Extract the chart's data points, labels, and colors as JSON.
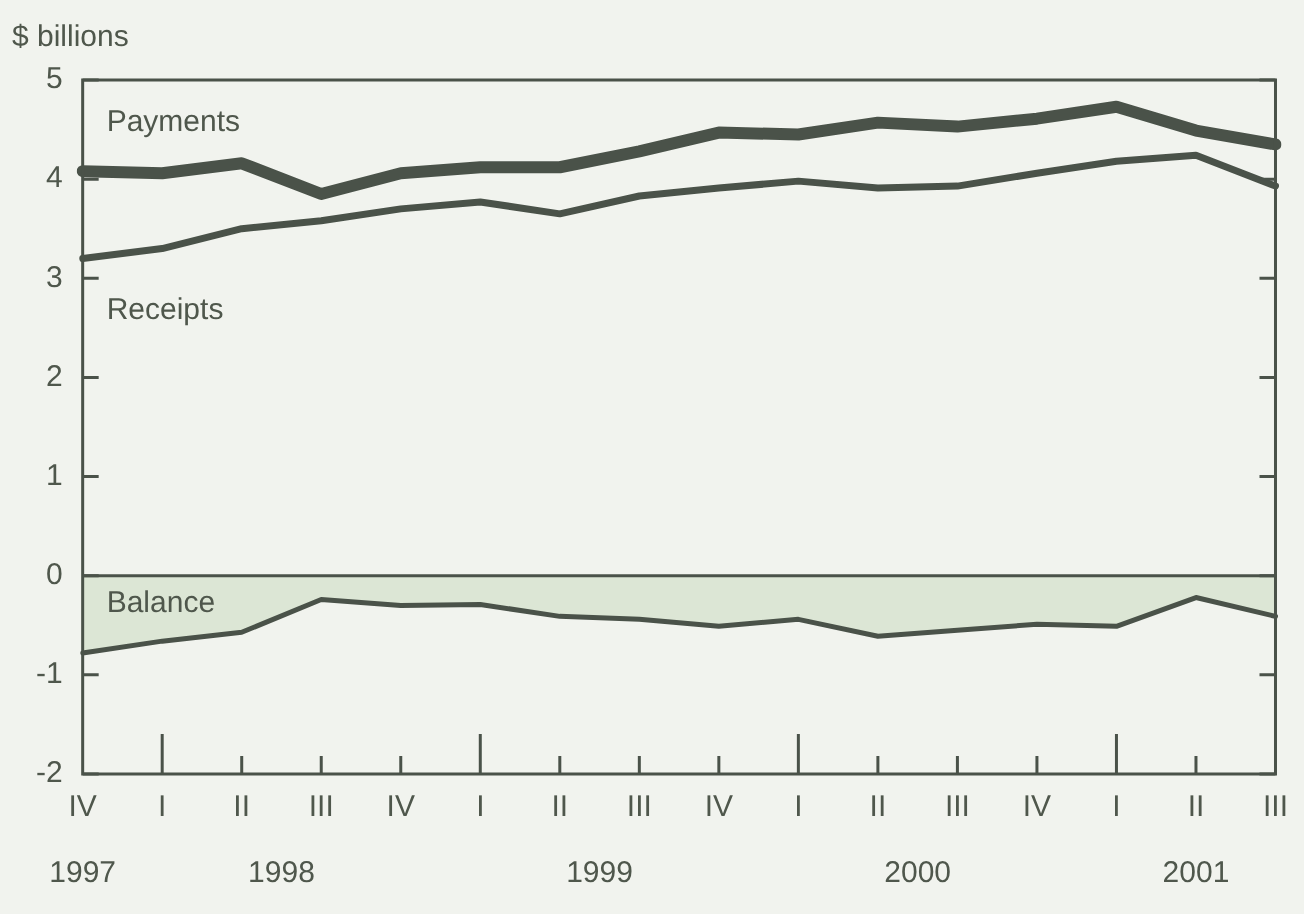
{
  "chart_data": {
    "type": "line",
    "ylabel": "$ billions",
    "categories": [
      "IV",
      "I",
      "II",
      "III",
      "IV",
      "I",
      "II",
      "III",
      "IV",
      "I",
      "II",
      "III",
      "IV",
      "I",
      "II",
      "III"
    ],
    "annotations": [
      "1997",
      "1998",
      "1999",
      "2000",
      "2001"
    ],
    "ylim": [
      -2,
      5
    ],
    "yticks": [
      -2,
      -1,
      0,
      1,
      2,
      3,
      4,
      5
    ],
    "grid": false,
    "ref_lines": [
      {
        "axis": "y",
        "value": 0
      }
    ],
    "legend": false,
    "marker": "none",
    "line_style": "solid",
    "series": [
      {
        "name": "Payments",
        "color": "#4a5249",
        "values": [
          4.08,
          4.06,
          4.16,
          3.85,
          4.06,
          4.12,
          4.12,
          4.28,
          4.47,
          4.45,
          4.57,
          4.53,
          4.61,
          4.73,
          4.49,
          4.35
        ]
      },
      {
        "name": "Receipts",
        "color": "#4a5249",
        "values": [
          3.2,
          3.3,
          3.5,
          3.58,
          3.7,
          3.77,
          3.65,
          3.83,
          3.91,
          3.98,
          3.91,
          3.93,
          4.06,
          4.18,
          4.24,
          3.93
        ]
      },
      {
        "name": "Balance",
        "type": "area",
        "color": "#dce6d5",
        "values": [
          -0.78,
          -0.66,
          -0.57,
          -0.24,
          -0.3,
          -0.29,
          -0.41,
          -0.44,
          -0.51,
          -0.44,
          -0.61,
          -0.55,
          -0.49,
          -0.51,
          -0.22,
          -0.41
        ]
      }
    ]
  }
}
